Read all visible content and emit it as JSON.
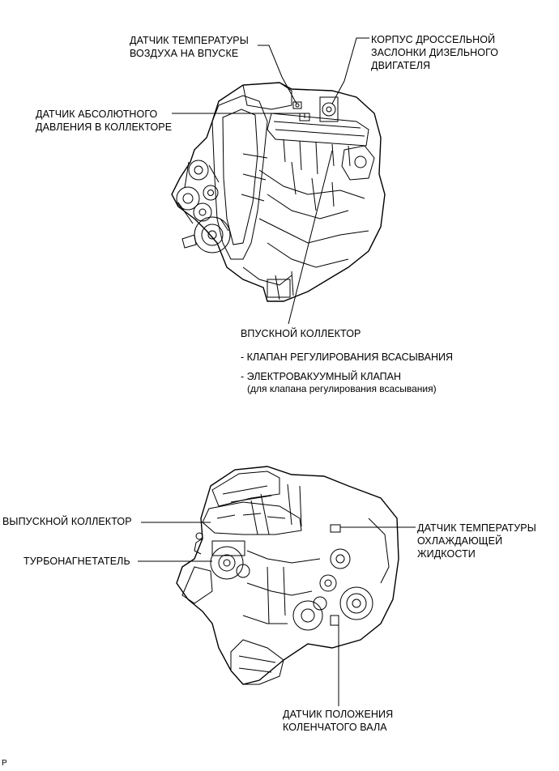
{
  "top_engine": {
    "labels": {
      "intake_air_temp_sensor": [
        "ДАТЧИК ТЕМПЕРАТУРЫ",
        "ВОЗДУХА НА ВПУСКЕ"
      ],
      "diesel_throttle_body": [
        "КОРПУС ДРОССЕЛЬНОЙ",
        "ЗАСЛОНКИ ДИЗЕЛЬНОГО",
        "ДВИГАТЕЛЯ"
      ],
      "manifold_absolute_pressure_sensor": [
        "ДАТЧИК АБСОЛЮТНОГО",
        "ДАВЛЕНИЯ В КОЛЛЕКТОРЕ"
      ],
      "intake_manifold": "ВПУСКНОЙ КОЛЛЕКТОР",
      "intake_manifold_parts": [
        "- КЛАПАН РЕГУЛИРОВАНИЯ ВСАСЫВАНИЯ",
        "- ЭЛЕКТРОВАКУУМНЫЙ КЛАПАН"
      ],
      "intake_manifold_note": "(для клапана регулирования всасывания)"
    }
  },
  "bottom_engine": {
    "labels": {
      "exhaust_manifold": "ВЫПУСКНОЙ КОЛЛЕКТОР",
      "turbocharger": "ТУРБОНАГНЕТАТЕЛЬ",
      "coolant_temp_sensor": [
        "ДАТЧИК ТЕМПЕРАТУРЫ",
        "ОХЛАЖДАЮЩЕЙ",
        "ЖИДКОСТИ"
      ],
      "crankshaft_position_sensor": [
        "ДАТЧИК ПОЛОЖЕНИЯ",
        "КОЛЕНЧАТОГО ВАЛА"
      ]
    }
  },
  "footer": {
    "code": "P"
  }
}
